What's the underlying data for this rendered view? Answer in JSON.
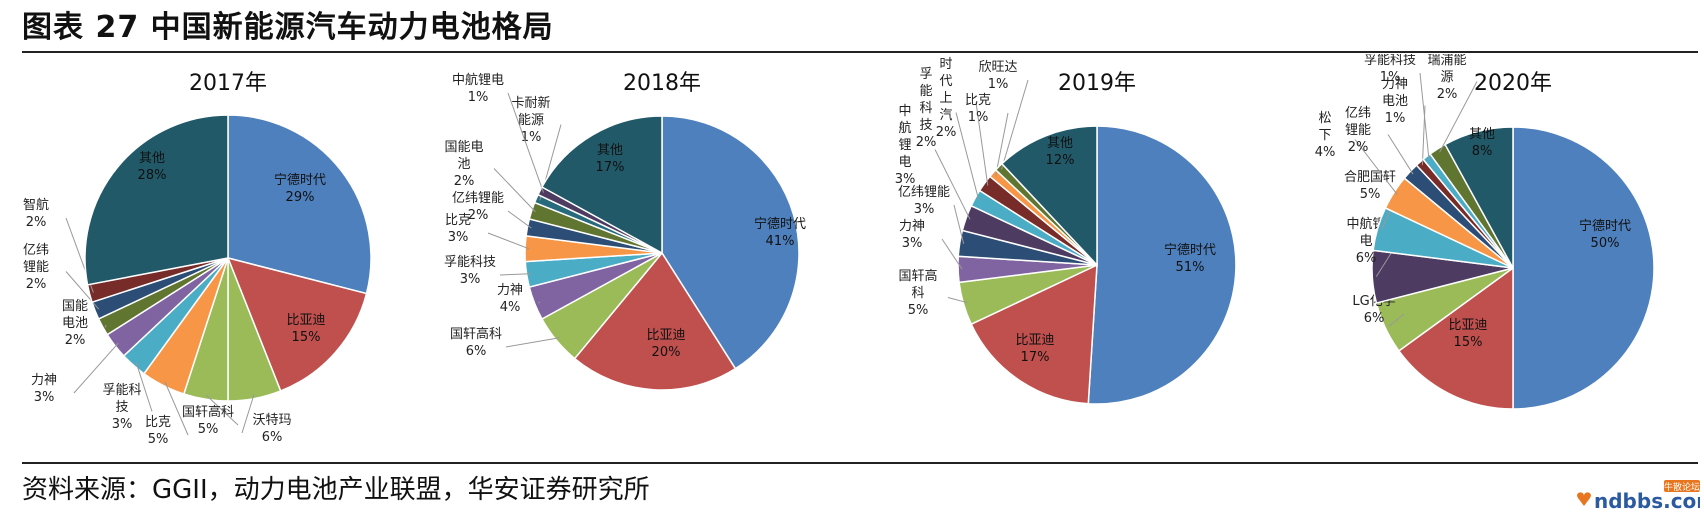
{
  "figure": {
    "title": "图表 27  中国新能源汽车动力电池格局",
    "source": "资料来源：GGII，动力电池产业联盟，华安证券研究所"
  },
  "watermark": {
    "text": "ndbbs.com",
    "badge": "牛散论坛"
  },
  "colors": {
    "宁德时代": "#4e80bd",
    "比亚迪": "#c0504e",
    "国轩高科": "#9bbb59",
    "力神": "#8064a2",
    "孚能科技": "#4bacc6",
    "比克": "#f79646",
    "亿纬锂能": "#2c4d75",
    "智航": "#772c2a",
    "国能电池": "#5f7530",
    "中航锂电": "#4d3b62",
    "沃特玛": "#9bbb59",
    "卡耐新能源": "#276a7c",
    "上汽时代": "#772c2a",
    "欣旺达": "#5f7530",
    "LG化学": "#9bbb59",
    "合肥国轩": "#4bacc6",
    "松下": "#f79646",
    "力神电池": "#772c2a",
    "瑞浦能源": "#5f7530",
    "其他": "#215968"
  },
  "chart_data": [
    {
      "type": "pie",
      "title": "2017年",
      "slices": [
        {
          "label": "宁德时代",
          "value": 29,
          "text": "宁德时代\n29%"
        },
        {
          "label": "比亚迪",
          "value": 15,
          "text": "比亚迪\n15%"
        },
        {
          "label": "沃特玛",
          "value": 6,
          "text": "沃特玛\n6%"
        },
        {
          "label": "国轩高科",
          "value": 5,
          "text": "国轩高科\n5%"
        },
        {
          "label": "比克",
          "value": 5,
          "text": "比克\n5%"
        },
        {
          "label": "孚能科技",
          "value": 3,
          "text": "孚能科\n技\n3%"
        },
        {
          "label": "力神",
          "value": 3,
          "text": "力神\n3%"
        },
        {
          "label": "国能电池",
          "value": 2,
          "text": "国能\n电池\n2%"
        },
        {
          "label": "亿纬锂能",
          "value": 2,
          "text": "亿纬\n锂能\n2%"
        },
        {
          "label": "智航",
          "value": 2,
          "text": "智航\n2%"
        },
        {
          "label": "其他",
          "value": 28,
          "text": "其他\n28%"
        }
      ]
    },
    {
      "type": "pie",
      "title": "2018年",
      "slices": [
        {
          "label": "宁德时代",
          "value": 41,
          "text": "宁德时代\n41%"
        },
        {
          "label": "比亚迪",
          "value": 20,
          "text": "比亚迪\n20%"
        },
        {
          "label": "国轩高科",
          "value": 6,
          "text": "国轩高科\n6%"
        },
        {
          "label": "力神",
          "value": 4,
          "text": "力神\n4%"
        },
        {
          "label": "孚能科技",
          "value": 3,
          "text": "孚能科技\n3%"
        },
        {
          "label": "比克",
          "value": 3,
          "text": "比克\n3%"
        },
        {
          "label": "亿纬锂能",
          "value": 2,
          "text": "亿纬锂能\n2%"
        },
        {
          "label": "国能电池",
          "value": 2,
          "text": "国能电\n池\n2%"
        },
        {
          "label": "卡耐新能源",
          "value": 1,
          "text": "卡耐新\n能源\n1%"
        },
        {
          "label": "中航锂电",
          "value": 1,
          "text": "中航锂电\n1%"
        },
        {
          "label": "其他",
          "value": 17,
          "text": "其他\n17%"
        }
      ]
    },
    {
      "type": "pie",
      "title": "2019年",
      "slices": [
        {
          "label": "宁德时代",
          "value": 51,
          "text": "宁德时代\n51%"
        },
        {
          "label": "比亚迪",
          "value": 17,
          "text": "比亚迪\n17%"
        },
        {
          "label": "国轩高科",
          "value": 5,
          "text": "国轩高\n科\n5%"
        },
        {
          "label": "力神",
          "value": 3,
          "text": "力神\n3%"
        },
        {
          "label": "亿纬锂能",
          "value": 3,
          "text": "亿纬锂能\n3%"
        },
        {
          "label": "中航锂电",
          "value": 3,
          "text": "中\n航\n锂\n电\n3%"
        },
        {
          "label": "孚能科技",
          "value": 2,
          "text": "孚\n能\n科\n技\n2%"
        },
        {
          "label": "上汽时代",
          "value": 2,
          "text": "时\n代\n上\n汽\n2%"
        },
        {
          "label": "比克",
          "value": 1,
          "text": "比克\n1%"
        },
        {
          "label": "欣旺达",
          "value": 1,
          "text": "欣旺达\n1%"
        },
        {
          "label": "其他",
          "value": 12,
          "text": "其他\n12%"
        }
      ]
    },
    {
      "type": "pie",
      "title": "2020年",
      "slices": [
        {
          "label": "宁德时代",
          "value": 50,
          "text": "宁德时代\n50%"
        },
        {
          "label": "比亚迪",
          "value": 15,
          "text": "比亚迪\n15%"
        },
        {
          "label": "LG化学",
          "value": 6,
          "text": "LG化学\n6%"
        },
        {
          "label": "中航锂电",
          "value": 6,
          "text": "中航锂\n电\n6%"
        },
        {
          "label": "合肥国轩",
          "value": 5,
          "text": "合肥国轩\n5%"
        },
        {
          "label": "松下",
          "value": 4,
          "text": "松\n下\n4%"
        },
        {
          "label": "亿纬锂能",
          "value": 2,
          "text": "亿纬\n锂能\n2%"
        },
        {
          "label": "力神电池",
          "value": 1,
          "text": "力神\n电池\n1%"
        },
        {
          "label": "孚能科技",
          "value": 1,
          "text": "孚能科技\n1%"
        },
        {
          "label": "瑞浦能源",
          "value": 2,
          "text": "瑞浦能\n源\n2%"
        },
        {
          "label": "其他",
          "value": 8,
          "text": "其他\n8%"
        }
      ]
    }
  ]
}
